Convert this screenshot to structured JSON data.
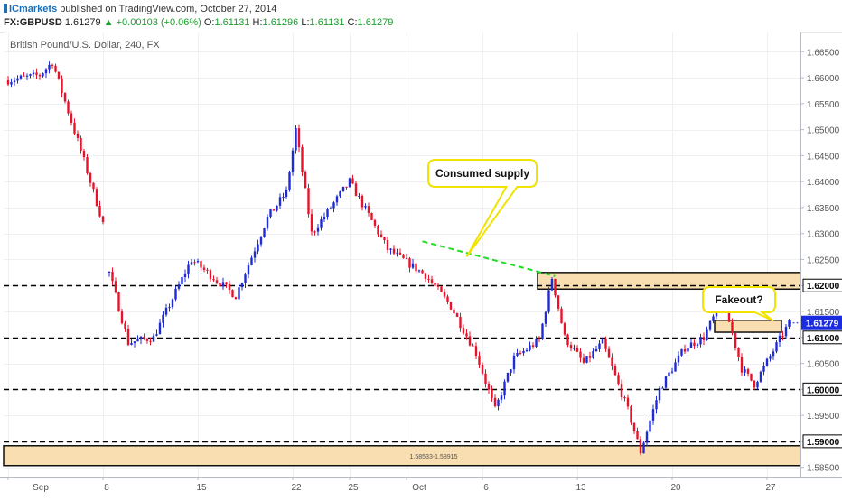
{
  "header": {
    "brand": "ICmarkets",
    "published": "published on TradingView.com, October 27, 2014",
    "symbol": "FX:GBPUSD",
    "last": "1.61279",
    "change": "+0.00103 (+0.06%)",
    "open_label": "O:",
    "open": "1.61131",
    "high_label": "H:",
    "high": "1.61296",
    "low_label": "L:",
    "low": "1.61131",
    "close_label": "C:",
    "close": "1.61279"
  },
  "chart_data": {
    "type": "candlestick",
    "title": "British Pound/U.S. Dollar, 240, FX",
    "ylim": [
      1.5832,
      1.6687
    ],
    "y_ticks": [
      "1.66500",
      "1.66000",
      "1.65500",
      "1.65000",
      "1.64500",
      "1.64000",
      "1.63500",
      "1.63000",
      "1.62500",
      "1.62000",
      "1.61500",
      "1.61000",
      "1.60500",
      "1.60000",
      "1.59500",
      "1.59000",
      "1.58500"
    ],
    "highlighted_y_ticks": [
      "1.62000",
      "1.61000",
      "1.60000",
      "1.59000"
    ],
    "x_ticks": [
      {
        "label": "Sep",
        "bar": 0
      },
      {
        "label": "8",
        "bar": 30
      },
      {
        "label": "15",
        "bar": 60
      },
      {
        "label": "22",
        "bar": 90
      },
      {
        "label": "25",
        "bar": 108
      },
      {
        "label": "Oct",
        "bar": 126
      },
      {
        "label": "6",
        "bar": 150
      },
      {
        "label": "13",
        "bar": 180
      },
      {
        "label": "20",
        "bar": 210
      },
      {
        "label": "27",
        "bar": 240
      }
    ],
    "bar_count": 248,
    "price_label": "1.61279",
    "colors": {
      "up": "#1f2bd6",
      "down": "#e8132b",
      "zone_fill": "#f8deb0",
      "zone_edge": "#111111",
      "trend": "#22dd22",
      "callout_border": "#f1e200",
      "last_price": "#1a2be0"
    },
    "segments": [
      {
        "from_bar": 0,
        "to_bar": 10,
        "start": 1.6595,
        "end": 1.6605
      },
      {
        "from_bar": 10,
        "to_bar": 14,
        "start": 1.6605,
        "end": 1.663
      },
      {
        "from_bar": 14,
        "to_bar": 24,
        "start": 1.663,
        "end": 1.644
      },
      {
        "from_bar": 24,
        "to_bar": 31,
        "start": 1.644,
        "end": 1.63
      },
      {
        "from_bar": 31,
        "to_bar": 32,
        "start": 1.63,
        "end": 1.6225
      },
      {
        "from_bar": 32,
        "to_bar": 38,
        "start": 1.6225,
        "end": 1.609
      },
      {
        "from_bar": 38,
        "to_bar": 46,
        "start": 1.609,
        "end": 1.61
      },
      {
        "from_bar": 46,
        "to_bar": 58,
        "start": 1.61,
        "end": 1.625
      },
      {
        "from_bar": 58,
        "to_bar": 64,
        "start": 1.625,
        "end": 1.622
      },
      {
        "from_bar": 64,
        "to_bar": 72,
        "start": 1.622,
        "end": 1.618
      },
      {
        "from_bar": 72,
        "to_bar": 82,
        "start": 1.618,
        "end": 1.633
      },
      {
        "from_bar": 82,
        "to_bar": 88,
        "start": 1.633,
        "end": 1.638
      },
      {
        "from_bar": 88,
        "to_bar": 91,
        "start": 1.638,
        "end": 1.65
      },
      {
        "from_bar": 91,
        "to_bar": 96,
        "start": 1.65,
        "end": 1.63
      },
      {
        "from_bar": 96,
        "to_bar": 108,
        "start": 1.63,
        "end": 1.64
      },
      {
        "from_bar": 108,
        "to_bar": 120,
        "start": 1.64,
        "end": 1.627
      },
      {
        "from_bar": 120,
        "to_bar": 132,
        "start": 1.627,
        "end": 1.622
      },
      {
        "from_bar": 132,
        "to_bar": 140,
        "start": 1.622,
        "end": 1.616
      },
      {
        "from_bar": 140,
        "to_bar": 148,
        "start": 1.616,
        "end": 1.607
      },
      {
        "from_bar": 148,
        "to_bar": 154,
        "start": 1.607,
        "end": 1.596
      },
      {
        "from_bar": 154,
        "to_bar": 160,
        "start": 1.596,
        "end": 1.606
      },
      {
        "from_bar": 160,
        "to_bar": 168,
        "start": 1.606,
        "end": 1.6095
      },
      {
        "from_bar": 168,
        "to_bar": 172,
        "start": 1.6095,
        "end": 1.6215
      },
      {
        "from_bar": 172,
        "to_bar": 176,
        "start": 1.6215,
        "end": 1.61
      },
      {
        "from_bar": 176,
        "to_bar": 182,
        "start": 1.61,
        "end": 1.605
      },
      {
        "from_bar": 182,
        "to_bar": 188,
        "start": 1.605,
        "end": 1.609
      },
      {
        "from_bar": 188,
        "to_bar": 196,
        "start": 1.609,
        "end": 1.596
      },
      {
        "from_bar": 196,
        "to_bar": 200,
        "start": 1.596,
        "end": 1.588
      },
      {
        "from_bar": 200,
        "to_bar": 206,
        "start": 1.588,
        "end": 1.6
      },
      {
        "from_bar": 206,
        "to_bar": 214,
        "start": 1.6,
        "end": 1.608
      },
      {
        "from_bar": 214,
        "to_bar": 220,
        "start": 1.608,
        "end": 1.61
      },
      {
        "from_bar": 220,
        "to_bar": 226,
        "start": 1.61,
        "end": 1.6175
      },
      {
        "from_bar": 226,
        "to_bar": 232,
        "start": 1.6175,
        "end": 1.604
      },
      {
        "from_bar": 232,
        "to_bar": 236,
        "start": 1.604,
        "end": 1.601
      },
      {
        "from_bar": 236,
        "to_bar": 247,
        "start": 1.601,
        "end": 1.6128
      }
    ],
    "horizontal_lines": [
      1.62,
      1.61,
      1.6,
      1.59
    ],
    "zones": [
      {
        "y1": 1.6193,
        "y2": 1.6225,
        "from_bar": 168,
        "label": ""
      },
      {
        "y1": 1.611,
        "y2": 1.6133,
        "from_bar": 224,
        "to_bar": 244,
        "label": ""
      },
      {
        "y1": 1.58533,
        "y2": 1.58915,
        "from_bar": 0,
        "label": "1.58533-1.58915"
      }
    ],
    "trend_line": {
      "from_bar": 131,
      "from_y": 1.6285,
      "to_bar": 173,
      "to_y": 1.6218
    },
    "annotations": [
      {
        "text": "Consumed supply",
        "pointer_bar": 145,
        "pointer_y": 1.6255
      },
      {
        "text": "Fakeout?",
        "pointer_bar": 242,
        "pointer_y": 1.6132
      }
    ]
  }
}
